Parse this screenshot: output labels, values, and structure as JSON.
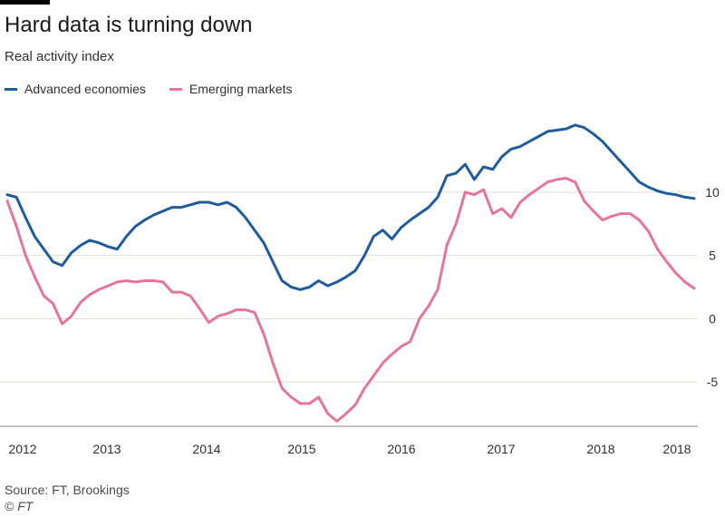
{
  "header": {
    "title": "Hard data is turning down",
    "subtitle": "Real activity index"
  },
  "footer": {
    "source": "Source: FT, Brookings",
    "copyright": "© FT"
  },
  "chart_data": {
    "type": "line",
    "title": "Hard data is turning down",
    "subtitle": "Real activity index",
    "xlabel": "",
    "ylabel": "",
    "x_tick_labels": [
      "2012",
      "2013",
      "2014",
      "2015",
      "2016",
      "2017",
      "2018",
      "2018"
    ],
    "x_range": [
      "2012-01",
      "2018-04"
    ],
    "y_ticks": [
      10,
      5,
      0,
      -5
    ],
    "ylim": [
      -8.5,
      13
    ],
    "grid": "horizontal",
    "legend_position": "top-left",
    "y_axis_side": "right",
    "colors": {
      "advanced": "#1f5c99",
      "emerging": "#e3769a",
      "grid": "#e2ddd7",
      "text": "#33302e"
    },
    "x": [
      "2012-01",
      "2012-02",
      "2012-03",
      "2012-04",
      "2012-05",
      "2012-06",
      "2012-07",
      "2012-08",
      "2012-09",
      "2012-10",
      "2012-11",
      "2012-12",
      "2013-01",
      "2013-02",
      "2013-03",
      "2013-04",
      "2013-05",
      "2013-06",
      "2013-07",
      "2013-08",
      "2013-09",
      "2013-10",
      "2013-11",
      "2013-12",
      "2014-01",
      "2014-02",
      "2014-03",
      "2014-04",
      "2014-05",
      "2014-06",
      "2014-07",
      "2014-08",
      "2014-09",
      "2014-10",
      "2014-11",
      "2014-12",
      "2015-01",
      "2015-02",
      "2015-03",
      "2015-04",
      "2015-05",
      "2015-06",
      "2015-07",
      "2015-08",
      "2015-09",
      "2015-10",
      "2015-11",
      "2015-12",
      "2016-01",
      "2016-02",
      "2016-03",
      "2016-04",
      "2016-05",
      "2016-06",
      "2016-07",
      "2016-08",
      "2016-09",
      "2016-10",
      "2016-11",
      "2016-12",
      "2017-01",
      "2017-02",
      "2017-03",
      "2017-04",
      "2017-05",
      "2017-06",
      "2017-07",
      "2017-08",
      "2017-09",
      "2017-10",
      "2017-11",
      "2017-12",
      "2018-01",
      "2018-02",
      "2018-03",
      "2018-04"
    ],
    "series": [
      {
        "name": "Advanced economies",
        "color": "#1f5c99",
        "values": [
          9.8,
          9.6,
          8.0,
          6.5,
          5.5,
          4.5,
          4.2,
          5.2,
          5.8,
          6.2,
          6.0,
          5.7,
          5.5,
          6.5,
          7.3,
          7.8,
          8.2,
          8.5,
          8.8,
          8.8,
          9.0,
          9.2,
          9.2,
          9.0,
          9.2,
          8.8,
          8.0,
          7.0,
          6.0,
          4.5,
          3.0,
          2.5,
          2.3,
          2.5,
          3.0,
          2.6,
          2.9,
          3.3,
          3.8,
          5.0,
          6.5,
          7.0,
          6.3,
          7.2,
          7.8,
          8.3,
          8.8,
          9.6,
          11.3,
          11.5,
          12.2,
          11.0,
          12.0,
          11.8,
          12.8,
          13.4,
          13.6,
          14.0,
          14.4,
          14.8,
          14.9,
          15.0,
          15.3,
          15.1,
          14.6,
          14.0,
          13.2,
          12.4,
          11.6,
          10.8,
          10.4,
          10.1,
          9.9,
          9.8,
          9.6,
          9.5
        ]
      },
      {
        "name": "Emerging markets",
        "color": "#e3769a",
        "values": [
          9.3,
          7.3,
          5.0,
          3.3,
          1.8,
          1.2,
          -0.4,
          0.2,
          1.3,
          1.9,
          2.3,
          2.6,
          2.9,
          3.0,
          2.9,
          3.0,
          3.0,
          2.9,
          2.1,
          2.1,
          1.8,
          0.8,
          -0.3,
          0.2,
          0.4,
          0.7,
          0.7,
          0.5,
          -1.2,
          -3.5,
          -5.5,
          -6.2,
          -6.7,
          -6.7,
          -6.2,
          -7.5,
          -8.1,
          -7.5,
          -6.8,
          -5.5,
          -4.5,
          -3.5,
          -2.8,
          -2.2,
          -1.8,
          0.0,
          1.0,
          2.3,
          5.8,
          7.5,
          10.0,
          9.8,
          10.2,
          8.3,
          8.7,
          8.0,
          9.2,
          9.8,
          10.3,
          10.8,
          11.0,
          11.1,
          10.8,
          9.3,
          8.5,
          7.8,
          8.1,
          8.3,
          8.3,
          7.8,
          6.9,
          5.5,
          4.5,
          3.6,
          2.9,
          2.4
        ]
      }
    ]
  }
}
